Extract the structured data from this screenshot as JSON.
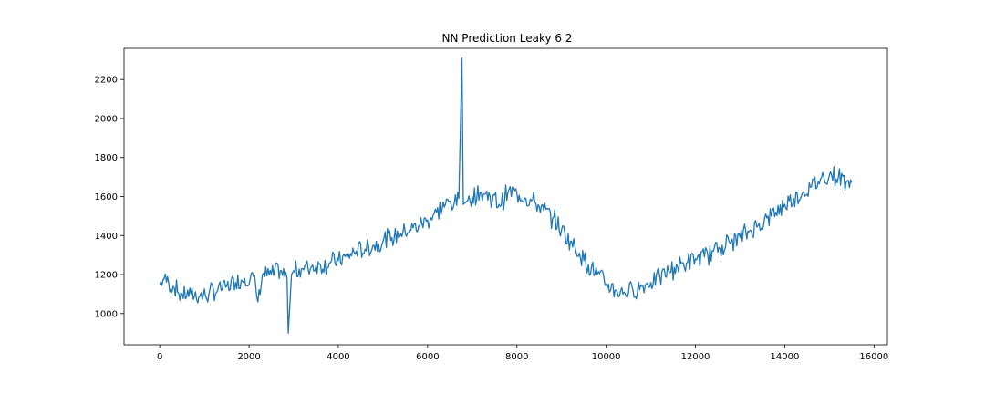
{
  "chart_data": {
    "type": "line",
    "title": "NN Prediction Leaky 6 2",
    "xlabel": "",
    "ylabel": "",
    "xlim": [
      -800,
      16300
    ],
    "ylim": [
      840,
      2360
    ],
    "xticks": [
      0,
      2000,
      4000,
      6000,
      8000,
      10000,
      12000,
      14000,
      16000
    ],
    "xtick_labels": [
      "0",
      "2000",
      "4000",
      "6000",
      "8000",
      "10000",
      "12000",
      "14000",
      "16000"
    ],
    "yticks": [
      1000,
      1200,
      1400,
      1600,
      1800,
      2000,
      2200
    ],
    "ytick_labels": [
      "1000",
      "1200",
      "1400",
      "1600",
      "1800",
      "2000",
      "2200"
    ],
    "grid": false,
    "legend": "none",
    "series": [
      {
        "color": "#1f77b4",
        "x": [
          0,
          100,
          200,
          300,
          400,
          500,
          700,
          900,
          1100,
          1300,
          1500,
          1700,
          1900,
          2100,
          2200,
          2300,
          2500,
          2700,
          2850,
          2880,
          2950,
          3000,
          3200,
          3400,
          3600,
          3800,
          4000,
          4200,
          4400,
          4600,
          4800,
          5000,
          5200,
          5400,
          5600,
          5800,
          6000,
          6200,
          6400,
          6600,
          6700,
          6770,
          6800,
          6900,
          7000,
          7200,
          7400,
          7600,
          7800,
          8000,
          8200,
          8400,
          8600,
          8800,
          9000,
          9200,
          9400,
          9600,
          9800,
          10000,
          10200,
          10400,
          10600,
          10800,
          11000,
          11200,
          11400,
          11600,
          11800,
          12000,
          12200,
          12400,
          12600,
          12800,
          13000,
          13200,
          13400,
          13600,
          13800,
          14000,
          14200,
          14400,
          14600,
          14800,
          15000,
          15200,
          15400,
          15500
        ],
        "y": [
          1150,
          1180,
          1160,
          1140,
          1110,
          1100,
          1100,
          1090,
          1100,
          1120,
          1140,
          1160,
          1180,
          1190,
          1060,
          1200,
          1200,
          1220,
          1180,
          900,
          1200,
          1220,
          1230,
          1240,
          1250,
          1260,
          1270,
          1290,
          1320,
          1330,
          1350,
          1370,
          1390,
          1410,
          1430,
          1450,
          1480,
          1520,
          1560,
          1570,
          1590,
          2310,
          1560,
          1580,
          1600,
          1620,
          1600,
          1560,
          1620,
          1620,
          1590,
          1570,
          1530,
          1490,
          1430,
          1370,
          1310,
          1250,
          1200,
          1150,
          1120,
          1110,
          1120,
          1140,
          1160,
          1190,
          1220,
          1240,
          1260,
          1280,
          1290,
          1320,
          1350,
          1370,
          1390,
          1420,
          1450,
          1490,
          1520,
          1560,
          1590,
          1620,
          1650,
          1690,
          1710,
          1700,
          1680,
          1670
        ]
      }
    ]
  }
}
